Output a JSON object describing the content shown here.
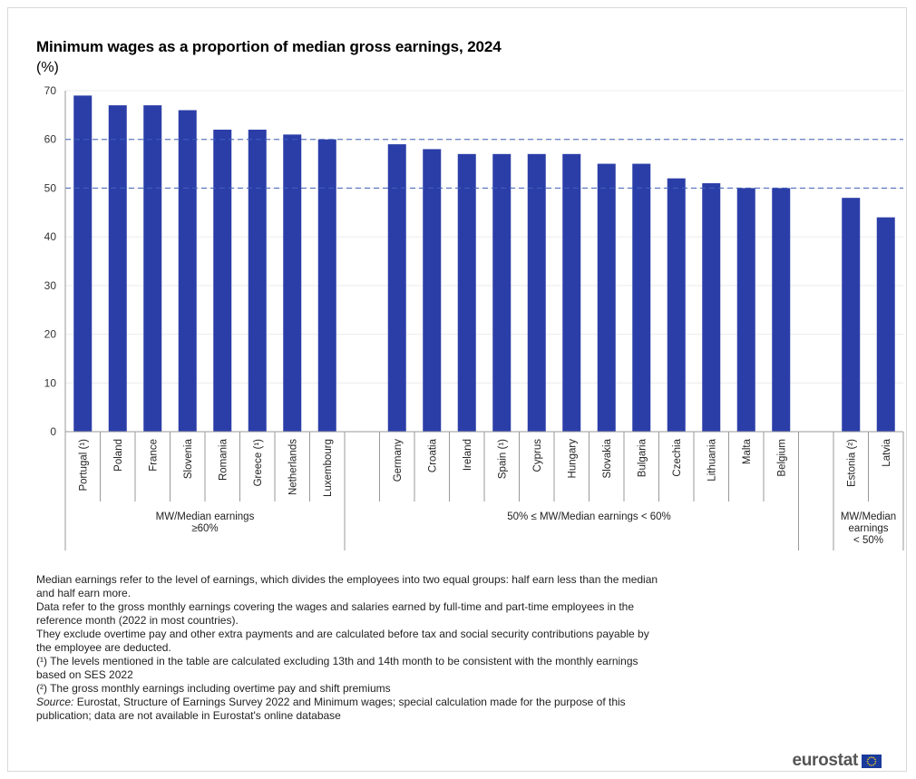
{
  "chart_data": {
    "type": "bar",
    "title": "Minimum wages as a proportion of median gross earnings, 2024",
    "ylabel": "(%)",
    "ylim": [
      0,
      70
    ],
    "yticks": [
      0,
      10,
      20,
      30,
      40,
      50,
      60,
      70
    ],
    "reference_lines": [
      50,
      60
    ],
    "bar_color": "#2b3ea8",
    "groups": [
      {
        "label_lines": [
          "MW/Median earnings",
          "≥60%"
        ],
        "categories": [
          "Portugal (¹)",
          "Poland",
          "France",
          "Slovenia",
          "Romania",
          "Greece (¹)",
          "Netherlands",
          "Luxembourg"
        ],
        "values": [
          69,
          67,
          67,
          66,
          62,
          62,
          61,
          60
        ]
      },
      {
        "label_lines": [
          "50% ≤ MW/Median earnings < 60%"
        ],
        "categories": [
          "Germany",
          "Croatia",
          "Ireland",
          "Spain (¹)",
          "Cyprus",
          "Hungary",
          "Slovakia",
          "Bulgaria",
          "Czechia",
          "Lithuania",
          "Malta",
          "Belgium"
        ],
        "values": [
          59,
          58,
          57,
          57,
          57,
          57,
          55,
          55,
          52,
          51,
          50,
          50
        ]
      },
      {
        "label_lines": [
          "MW/Median",
          "earnings",
          "< 50%"
        ],
        "categories": [
          "Estonia (²)",
          "Latvia"
        ],
        "values": [
          48,
          44
        ]
      }
    ]
  },
  "notes": {
    "n1": "Median earnings refer to the level of earnings, which divides the employees into two equal groups: half earn less than the median and half earn more.",
    "n2": "Data refer to the gross monthly earnings covering the wages and salaries earned by full-time and part-time employees in the reference month (2022 in most countries).",
    "n3": "They exclude overtime pay and other extra payments and are calculated before tax and social security contributions payable by the employee are deducted.",
    "n4": "(¹) The levels mentioned in the table are calculated excluding 13th and 14th month to be consistent with the monthly earnings based on SES 2022",
    "n5": "(²) The gross monthly earnings  including overtime  pay and shift premiums",
    "source_label": "Source:",
    "source_text": " Eurostat, Structure of Earnings Survey 2022 and Minimum wages; special calculation made for the purpose of this publication; data are not available in Eurostat's online database"
  },
  "logo": {
    "text": "eurostat",
    "flag_color": "#1a3a9c",
    "star_color": "#ffd617"
  }
}
